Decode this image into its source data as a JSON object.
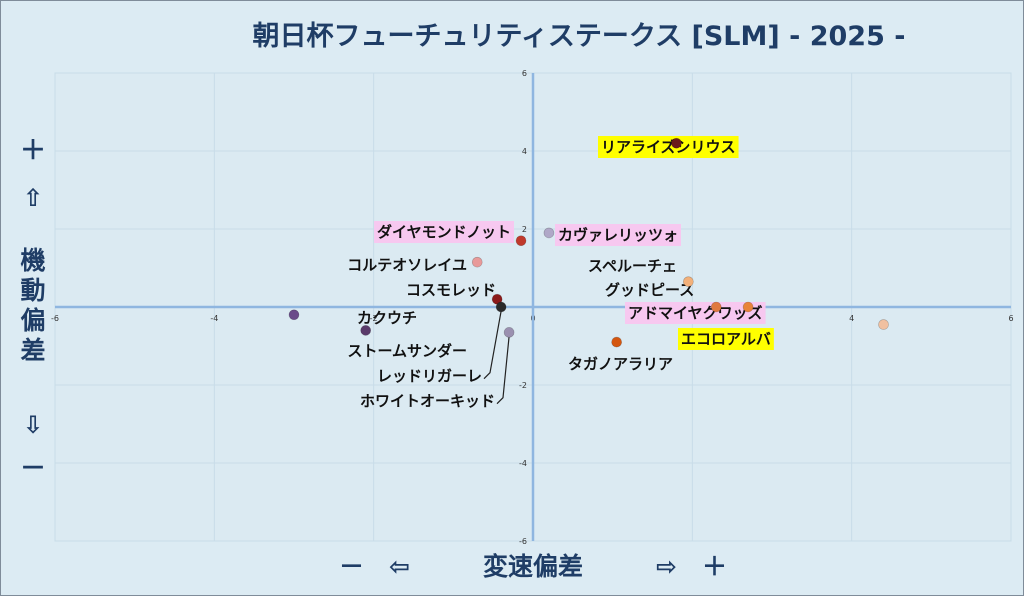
{
  "chart_data": {
    "type": "scatter",
    "title": "朝日杯フューチュリティステークス [SLM] - 2025 -",
    "xlabel": "変速偏差",
    "ylabel": "機動偏差",
    "x_left_label": "－　⇦",
    "x_right_label": "⇨　＋",
    "y_top_label": "＋",
    "y_top_arrow": "⇧",
    "y_bottom_arrow": "⇩",
    "y_bottom_label": "－",
    "xlim": [
      -6,
      6
    ],
    "ylim": [
      -6,
      6
    ],
    "xticks": [
      "-6",
      "-4",
      "-2",
      "0",
      "2",
      "4",
      "6"
    ],
    "yticks": [
      "6",
      "4",
      "2",
      "0",
      "-2",
      "-4",
      "-6"
    ],
    "grid": true,
    "points": [
      {
        "name": "リアライズシリウス",
        "x": 1.8,
        "y": 4.2,
        "color": "#6b1a1a",
        "highlight": "yellow"
      },
      {
        "name": "ダイヤモンドノット",
        "x": -0.15,
        "y": 1.7,
        "color": "#c0392b",
        "highlight": "pink"
      },
      {
        "name": "カヴァレリッツォ",
        "x": 0.2,
        "y": 1.9,
        "color": "#b0a8c8",
        "highlight": "pink"
      },
      {
        "name": "コルテオソレイユ",
        "x": -0.7,
        "y": 1.15,
        "color": "#e89a9a",
        "highlight": "none"
      },
      {
        "name": "スペルーチェ",
        "x": 1.95,
        "y": 0.65,
        "color": "#f2b07a",
        "highlight": "none"
      },
      {
        "name": "コスモレッド",
        "x": -0.45,
        "y": 0.2,
        "color": "#8b1a1a",
        "highlight": "none"
      },
      {
        "name": "グッドピース",
        "x": 2.3,
        "y": 0.0,
        "color": "#e07a40",
        "highlight": "none"
      },
      {
        "name": "アドマイヤクワッズ",
        "x": 2.7,
        "y": 0.0,
        "color": "#e8843a",
        "highlight": "pink"
      },
      {
        "name": "エコロアルバ",
        "x": 4.4,
        "y": -0.45,
        "color": "#f0c0a0",
        "highlight": "yellow"
      },
      {
        "name": "カクウチ",
        "x": -3.0,
        "y": -0.2,
        "color": "#6a4a8a",
        "highlight": "none"
      },
      {
        "name": "ストームサンダー",
        "x": -2.1,
        "y": -0.6,
        "color": "#5a3a6a",
        "highlight": "none"
      },
      {
        "name": "レッドリガーレ",
        "x": -0.4,
        "y": 0.0,
        "color": "#2a2a2a",
        "highlight": "none"
      },
      {
        "name": "ホワイトオーキッド",
        "x": -0.3,
        "y": -0.65,
        "color": "#9a90b0",
        "highlight": "none"
      },
      {
        "name": "タガノアラリア",
        "x": 1.05,
        "y": -0.9,
        "color": "#d4560f",
        "highlight": "none"
      }
    ]
  }
}
